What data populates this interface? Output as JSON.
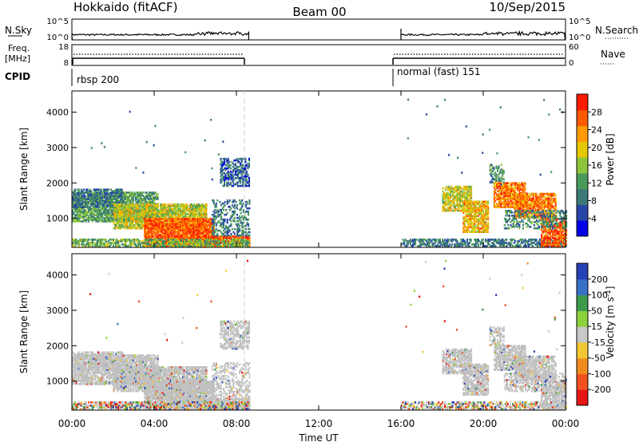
{
  "header": {
    "radar": "Hokkaido (fitACF)",
    "beam": "Beam 00",
    "date": "10/Sep/2015"
  },
  "strip": {
    "nsky_label": "N.Sky",
    "nsearch_label": "N.Search",
    "freq_label_1": "Freq.",
    "freq_label_2": "[MHz]",
    "nave_label": "Nave",
    "cpid_label": "CPID",
    "nsky_ticks": [
      "10^5",
      "10^0"
    ],
    "nsearch_ticks": [
      "10^5",
      "10^0"
    ],
    "freq_ticks": [
      "18",
      "8"
    ],
    "nave_ticks": [
      "60",
      "0"
    ],
    "cpid_segments": [
      {
        "label": "rbsp 200",
        "start_h": 0,
        "end_h": 8.6
      },
      {
        "label": "normal (fast) 151",
        "start_h": 16.0,
        "end_h": 24
      }
    ]
  },
  "chart_data": [
    {
      "type": "heatmap",
      "panel": "power",
      "ylabel": "Slant Range [km]",
      "xlabel": "Time UT",
      "x_range_hours": [
        0,
        24
      ],
      "ylim": [
        180,
        4600
      ],
      "y_ticks": [
        1000,
        2000,
        3000,
        4000
      ],
      "x_tick_labels": [
        "00:00",
        "04:00",
        "08:00",
        "12:00",
        "16:00",
        "20:00",
        "00:00"
      ],
      "data_gap_hours": [
        8.6,
        16.0
      ],
      "colorbar": {
        "label": "Power [dB]",
        "ticks": [
          "4",
          "8",
          "12",
          "16",
          "20",
          "24",
          "28"
        ],
        "colors": [
          "#0000e6",
          "#2846a8",
          "#3c7a78",
          "#4a9a5a",
          "#8ec43c",
          "#e6c800",
          "#ff9a00",
          "#ff5a00",
          "#ff1a00"
        ]
      }
    },
    {
      "type": "heatmap",
      "panel": "velocity",
      "ylabel": "Slant Range [km]",
      "xlabel": "Time UT",
      "x_range_hours": [
        0,
        24
      ],
      "ylim": [
        180,
        4600
      ],
      "y_ticks": [
        1000,
        2000,
        3000,
        4000
      ],
      "x_tick_labels": [
        "00:00",
        "04:00",
        "08:00",
        "12:00",
        "16:00",
        "20:00",
        "00:00"
      ],
      "data_gap_hours": [
        8.6,
        16.0
      ],
      "colorbar": {
        "label": "Velocity [m s^-1]",
        "ticks": [
          "200",
          "100",
          "50",
          "15",
          "-15",
          "-50",
          "-100",
          "-200"
        ],
        "colors": [
          "#2440b4",
          "#3870c8",
          "#3c9a4a",
          "#8cd23c",
          "#c8c8c8",
          "#f0c832",
          "#f08c1e",
          "#f0501e",
          "#e61414"
        ]
      }
    }
  ],
  "colors": {
    "gs_gray": "#c0c0c0",
    "axis": "#000000",
    "gap_line": "#d0d0d0"
  }
}
